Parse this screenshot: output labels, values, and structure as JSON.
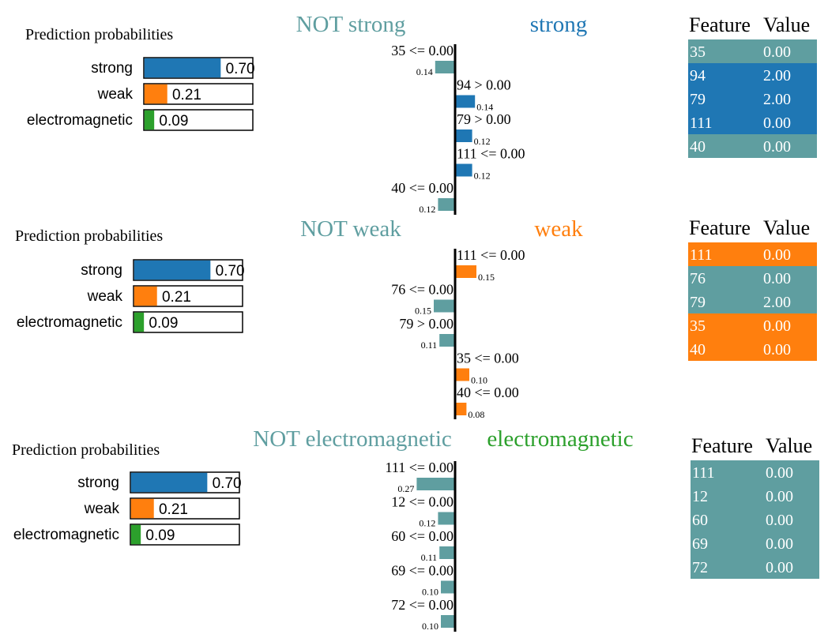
{
  "colors": {
    "strong": "#1f77b4",
    "weak": "#ff7f0e",
    "electromagnetic": "#2ca02c",
    "not": "#5f9ea0",
    "axis": "#000000"
  },
  "panels": [
    {
      "probabilities_title": "Prediction probabilities",
      "probabilities": [
        {
          "label": "strong",
          "value": 0.7,
          "text": "0.70",
          "color": "#1f77b4"
        },
        {
          "label": "weak",
          "value": 0.21,
          "text": "0.21",
          "color": "#ff7f0e"
        },
        {
          "label": "electromagnetic",
          "value": 0.09,
          "text": "0.09",
          "color": "#2ca02c"
        }
      ],
      "not_label": "NOT strong",
      "class_label": "strong",
      "class_color": "#1f77b4",
      "explanation": [
        {
          "condition": "35 <= 0.00",
          "weight": -0.14,
          "text": "0.14"
        },
        {
          "condition": "94 > 0.00",
          "weight": 0.14,
          "text": "0.14"
        },
        {
          "condition": "79 > 0.00",
          "weight": 0.12,
          "text": "0.12"
        },
        {
          "condition": "111 <= 0.00",
          "weight": 0.12,
          "text": "0.12"
        },
        {
          "condition": "40 <= 0.00",
          "weight": -0.12,
          "text": "0.12"
        }
      ],
      "table_header": {
        "feature": "Feature",
        "value": "Value"
      },
      "table_rows": [
        {
          "feature": "35",
          "value": "0.00",
          "color": "#5f9ea0"
        },
        {
          "feature": "94",
          "value": "2.00",
          "color": "#1f77b4"
        },
        {
          "feature": "79",
          "value": "2.00",
          "color": "#1f77b4"
        },
        {
          "feature": "111",
          "value": "0.00",
          "color": "#1f77b4"
        },
        {
          "feature": "40",
          "value": "0.00",
          "color": "#5f9ea0"
        }
      ]
    },
    {
      "probabilities_title": "Prediction probabilities",
      "probabilities": [
        {
          "label": "strong",
          "value": 0.7,
          "text": "0.70",
          "color": "#1f77b4"
        },
        {
          "label": "weak",
          "value": 0.21,
          "text": "0.21",
          "color": "#ff7f0e"
        },
        {
          "label": "electromagnetic",
          "value": 0.09,
          "text": "0.09",
          "color": "#2ca02c"
        }
      ],
      "not_label": "NOT weak",
      "class_label": "weak",
      "class_color": "#ff7f0e",
      "explanation": [
        {
          "condition": "111 <= 0.00",
          "weight": 0.15,
          "text": "0.15"
        },
        {
          "condition": "76 <= 0.00",
          "weight": -0.15,
          "text": "0.15"
        },
        {
          "condition": "79 > 0.00",
          "weight": -0.11,
          "text": "0.11"
        },
        {
          "condition": "35 <= 0.00",
          "weight": 0.1,
          "text": "0.10"
        },
        {
          "condition": "40 <= 0.00",
          "weight": 0.08,
          "text": "0.08"
        }
      ],
      "table_header": {
        "feature": "Feature",
        "value": "Value"
      },
      "table_rows": [
        {
          "feature": "111",
          "value": "0.00",
          "color": "#ff7f0e"
        },
        {
          "feature": "76",
          "value": "0.00",
          "color": "#5f9ea0"
        },
        {
          "feature": "79",
          "value": "2.00",
          "color": "#5f9ea0"
        },
        {
          "feature": "35",
          "value": "0.00",
          "color": "#ff7f0e"
        },
        {
          "feature": "40",
          "value": "0.00",
          "color": "#ff7f0e"
        }
      ]
    },
    {
      "probabilities_title": "Prediction probabilities",
      "probabilities": [
        {
          "label": "strong",
          "value": 0.7,
          "text": "0.70",
          "color": "#1f77b4"
        },
        {
          "label": "weak",
          "value": 0.21,
          "text": "0.21",
          "color": "#ff7f0e"
        },
        {
          "label": "electromagnetic",
          "value": 0.09,
          "text": "0.09",
          "color": "#2ca02c"
        }
      ],
      "not_label": "NOT electromagnetic",
      "class_label": "electromagnetic",
      "class_color": "#2ca02c",
      "explanation": [
        {
          "condition": "111 <= 0.00",
          "weight": -0.27,
          "text": "0.27"
        },
        {
          "condition": "12 <= 0.00",
          "weight": -0.12,
          "text": "0.12"
        },
        {
          "condition": "60 <= 0.00",
          "weight": -0.11,
          "text": "0.11"
        },
        {
          "condition": "69 <= 0.00",
          "weight": -0.1,
          "text": "0.10"
        },
        {
          "condition": "72 <= 0.00",
          "weight": -0.1,
          "text": "0.10"
        }
      ],
      "table_header": {
        "feature": "Feature",
        "value": "Value"
      },
      "table_rows": [
        {
          "feature": "111",
          "value": "0.00",
          "color": "#5f9ea0"
        },
        {
          "feature": "12",
          "value": "0.00",
          "color": "#5f9ea0"
        },
        {
          "feature": "60",
          "value": "0.00",
          "color": "#5f9ea0"
        },
        {
          "feature": "69",
          "value": "0.00",
          "color": "#5f9ea0"
        },
        {
          "feature": "72",
          "value": "0.00",
          "color": "#5f9ea0"
        }
      ]
    }
  ],
  "chart_data": [
    {
      "type": "bar",
      "categories": [
        "strong",
        "weak",
        "electromagnetic"
      ],
      "values": [
        0.7,
        0.21,
        0.09
      ],
      "title": "Prediction probabilities"
    },
    {
      "type": "bar",
      "categories": [
        "35 <= 0.00",
        "94 > 0.00",
        "79 > 0.00",
        "111 <= 0.00",
        "40 <= 0.00"
      ],
      "values": [
        -0.14,
        0.14,
        0.12,
        0.12,
        -0.12
      ],
      "legend": [
        "NOT strong",
        "strong"
      ]
    },
    {
      "type": "bar",
      "categories": [
        "strong",
        "weak",
        "electromagnetic"
      ],
      "values": [
        0.7,
        0.21,
        0.09
      ],
      "title": "Prediction probabilities"
    },
    {
      "type": "bar",
      "categories": [
        "111 <= 0.00",
        "76 <= 0.00",
        "79 > 0.00",
        "35 <= 0.00",
        "40 <= 0.00"
      ],
      "values": [
        0.15,
        -0.15,
        -0.11,
        0.1,
        0.08
      ],
      "legend": [
        "NOT weak",
        "weak"
      ]
    },
    {
      "type": "bar",
      "categories": [
        "strong",
        "weak",
        "electromagnetic"
      ],
      "values": [
        0.7,
        0.21,
        0.09
      ],
      "title": "Prediction probabilities"
    },
    {
      "type": "bar",
      "categories": [
        "111 <= 0.00",
        "12 <= 0.00",
        "60 <= 0.00",
        "69 <= 0.00",
        "72 <= 0.00"
      ],
      "values": [
        -0.27,
        -0.12,
        -0.11,
        -0.1,
        -0.1
      ],
      "legend": [
        "NOT electromagnetic",
        "electromagnetic"
      ]
    },
    {
      "type": "table",
      "columns": [
        "Feature",
        "Value"
      ],
      "rows": [
        [
          "35",
          "0.00"
        ],
        [
          "94",
          "2.00"
        ],
        [
          "79",
          "2.00"
        ],
        [
          "111",
          "0.00"
        ],
        [
          "40",
          "0.00"
        ]
      ]
    },
    {
      "type": "table",
      "columns": [
        "Feature",
        "Value"
      ],
      "rows": [
        [
          "111",
          "0.00"
        ],
        [
          "76",
          "0.00"
        ],
        [
          "79",
          "2.00"
        ],
        [
          "35",
          "0.00"
        ],
        [
          "40",
          "0.00"
        ]
      ]
    },
    {
      "type": "table",
      "columns": [
        "Feature",
        "Value"
      ],
      "rows": [
        [
          "111",
          "0.00"
        ],
        [
          "12",
          "0.00"
        ],
        [
          "60",
          "0.00"
        ],
        [
          "69",
          "0.00"
        ],
        [
          "72",
          "0.00"
        ]
      ]
    }
  ]
}
